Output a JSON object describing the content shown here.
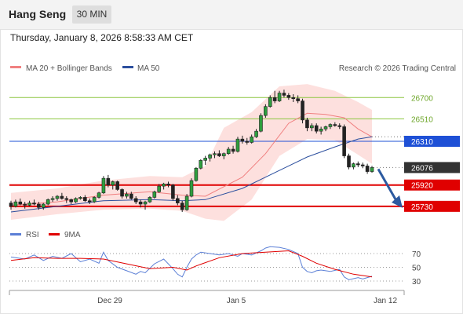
{
  "header": {
    "title": "Hang Seng",
    "timeframe": "30 MIN"
  },
  "datetime": "Thursday, January 8, 2026 8:58:33 AM CET",
  "legend": {
    "bollinger": {
      "label": "MA 20 + Bollinger Bands",
      "color": "#f08080"
    },
    "ma50": {
      "label": "MA 50",
      "color": "#2c4f9e"
    },
    "copyright": "Research © 2026 Trading Central"
  },
  "rsi_legend": {
    "rsi": {
      "label": "RSI",
      "color": "#5b7fd6"
    },
    "ma": {
      "label": "9MA",
      "color": "#e00000"
    }
  },
  "chart_data": {
    "type": "candlestick",
    "instrument": "Hang Seng",
    "timeframe": "30 MIN",
    "price_scale": [
      25540,
      26870
    ],
    "levels": [
      {
        "value": 26700,
        "label": "26700",
        "kind": "resistance",
        "color": "#8cc63f"
      },
      {
        "value": 26510,
        "label": "26510",
        "kind": "resistance",
        "color": "#8cc63f"
      },
      {
        "value": 26310,
        "label": "26310",
        "kind": "pivot",
        "color": "#1e50d6"
      },
      {
        "value": 26076,
        "label": "26076",
        "kind": "last",
        "color": "#333333"
      },
      {
        "value": 25920,
        "label": "25920",
        "kind": "support",
        "color": "#e00000"
      },
      {
        "value": 25730,
        "label": "25730",
        "kind": "support",
        "color": "#e00000"
      }
    ],
    "x_ticks": [
      "Dec 29",
      "Jan 5",
      "Jan 12"
    ],
    "candles": [
      [
        25760,
        25780,
        25700,
        25730
      ],
      [
        25730,
        25790,
        25720,
        25770
      ],
      [
        25770,
        25800,
        25740,
        25750
      ],
      [
        25750,
        25770,
        25710,
        25740
      ],
      [
        25740,
        25780,
        25730,
        25760
      ],
      [
        25760,
        25790,
        25740,
        25750
      ],
      [
        25750,
        25770,
        25700,
        25720
      ],
      [
        25720,
        25760,
        25700,
        25750
      ],
      [
        25750,
        25800,
        25740,
        25790
      ],
      [
        25790,
        25820,
        25770,
        25800
      ],
      [
        25800,
        25830,
        25780,
        25820
      ],
      [
        25820,
        25850,
        25790,
        25800
      ],
      [
        25800,
        25820,
        25760,
        25790
      ],
      [
        25790,
        25800,
        25750,
        25770
      ],
      [
        25770,
        25810,
        25760,
        25800
      ],
      [
        25800,
        25820,
        25790,
        25810
      ],
      [
        25810,
        25830,
        25770,
        25780
      ],
      [
        25780,
        25800,
        25750,
        25770
      ],
      [
        25770,
        25820,
        25760,
        25810
      ],
      [
        25810,
        25860,
        25800,
        25850
      ],
      [
        25850,
        26000,
        25840,
        25980
      ],
      [
        25980,
        26010,
        25900,
        25920
      ],
      [
        25920,
        25960,
        25880,
        25950
      ],
      [
        25950,
        25960,
        25870,
        25880
      ],
      [
        25880,
        25890,
        25800,
        25820
      ],
      [
        25820,
        25860,
        25800,
        25840
      ],
      [
        25840,
        25860,
        25790,
        25800
      ],
      [
        25800,
        25820,
        25750,
        25770
      ],
      [
        25770,
        25790,
        25720,
        25750
      ],
      [
        25750,
        25780,
        25700,
        25770
      ],
      [
        25770,
        25820,
        25760,
        25810
      ],
      [
        25810,
        25870,
        25800,
        25860
      ],
      [
        25860,
        25930,
        25850,
        25910
      ],
      [
        25910,
        25940,
        25880,
        25930
      ],
      [
        25930,
        25950,
        25900,
        25920
      ],
      [
        25920,
        25930,
        25780,
        25800
      ],
      [
        25800,
        25830,
        25740,
        25760
      ],
      [
        25760,
        25780,
        25680,
        25700
      ],
      [
        25700,
        25840,
        25690,
        25820
      ],
      [
        25820,
        25980,
        25810,
        25960
      ],
      [
        25960,
        26080,
        25950,
        26070
      ],
      [
        26070,
        26150,
        26060,
        26140
      ],
      [
        26140,
        26180,
        26100,
        26160
      ],
      [
        26160,
        26200,
        26130,
        26190
      ],
      [
        26190,
        26220,
        26160,
        26200
      ],
      [
        26200,
        26230,
        26170,
        26180
      ],
      [
        26180,
        26210,
        26150,
        26200
      ],
      [
        26200,
        26260,
        26190,
        26240
      ],
      [
        26240,
        26270,
        26200,
        26220
      ],
      [
        26220,
        26350,
        26210,
        26330
      ],
      [
        26330,
        26360,
        26290,
        26310
      ],
      [
        26310,
        26340,
        26280,
        26300
      ],
      [
        26300,
        26370,
        26290,
        26350
      ],
      [
        26350,
        26420,
        26340,
        26400
      ],
      [
        26400,
        26560,
        26390,
        26540
      ],
      [
        26540,
        26640,
        26520,
        26620
      ],
      [
        26620,
        26720,
        26610,
        26700
      ],
      [
        26700,
        26760,
        26650,
        26670
      ],
      [
        26670,
        26760,
        26660,
        26740
      ],
      [
        26740,
        26770,
        26700,
        26720
      ],
      [
        26720,
        26740,
        26680,
        26700
      ],
      [
        26700,
        26730,
        26660,
        26690
      ],
      [
        26690,
        26720,
        26650,
        26670
      ],
      [
        26670,
        26690,
        26470,
        26500
      ],
      [
        26500,
        26520,
        26400,
        26430
      ],
      [
        26430,
        26470,
        26400,
        26450
      ],
      [
        26450,
        26470,
        26380,
        26400
      ],
      [
        26400,
        26440,
        26370,
        26420
      ],
      [
        26420,
        26450,
        26400,
        26440
      ],
      [
        26440,
        26470,
        26420,
        26460
      ],
      [
        26460,
        26480,
        26440,
        26450
      ],
      [
        26450,
        26470,
        26420,
        26440
      ],
      [
        26440,
        26460,
        26160,
        26180
      ],
      [
        26180,
        26200,
        26060,
        26080
      ],
      [
        26080,
        26120,
        26060,
        26110
      ],
      [
        26110,
        26130,
        26080,
        26100
      ],
      [
        26100,
        26120,
        26070,
        26090
      ],
      [
        26090,
        26110,
        26020,
        26040
      ],
      [
        26040,
        26090,
        26030,
        26076
      ]
    ],
    "ma20": [
      [
        0,
        25740
      ],
      [
        10,
        25770
      ],
      [
        20,
        25830
      ],
      [
        30,
        25860
      ],
      [
        37,
        25830
      ],
      [
        42,
        25820
      ],
      [
        50,
        25990
      ],
      [
        55,
        26200
      ],
      [
        60,
        26470
      ],
      [
        64,
        26560
      ],
      [
        68,
        26550
      ],
      [
        72,
        26520
      ],
      [
        75,
        26420
      ],
      [
        78,
        26350
      ]
    ],
    "bb_upper": [
      [
        0,
        25850
      ],
      [
        10,
        25890
      ],
      [
        20,
        25960
      ],
      [
        30,
        26000
      ],
      [
        37,
        25990
      ],
      [
        42,
        26090
      ],
      [
        46,
        26430
      ],
      [
        52,
        26570
      ],
      [
        58,
        26800
      ],
      [
        64,
        26820
      ],
      [
        70,
        26760
      ],
      [
        75,
        26660
      ],
      [
        78,
        26590
      ]
    ],
    "bb_lower": [
      [
        0,
        25610
      ],
      [
        10,
        25660
      ],
      [
        20,
        25700
      ],
      [
        30,
        25710
      ],
      [
        37,
        25690
      ],
      [
        42,
        25620
      ],
      [
        46,
        25600
      ],
      [
        52,
        25790
      ],
      [
        58,
        26180
      ],
      [
        64,
        26330
      ],
      [
        70,
        26320
      ],
      [
        75,
        26190
      ],
      [
        78,
        26110
      ]
    ],
    "ma50": [
      [
        0,
        25680
      ],
      [
        10,
        25730
      ],
      [
        20,
        25780
      ],
      [
        30,
        25790
      ],
      [
        37,
        25780
      ],
      [
        42,
        25790
      ],
      [
        50,
        25890
      ],
      [
        58,
        26050
      ],
      [
        64,
        26170
      ],
      [
        70,
        26260
      ],
      [
        75,
        26330
      ],
      [
        78,
        26350
      ]
    ],
    "projection": {
      "from": 26076,
      "to": 25730
    },
    "rsi": {
      "levels": [
        70,
        50,
        30
      ],
      "rsi": [
        [
          0,
          65
        ],
        [
          3,
          62
        ],
        [
          5,
          68
        ],
        [
          7,
          60
        ],
        [
          9,
          66
        ],
        [
          11,
          63
        ],
        [
          13,
          70
        ],
        [
          15,
          58
        ],
        [
          17,
          62
        ],
        [
          19,
          56
        ],
        [
          20,
          72
        ],
        [
          21,
          60
        ],
        [
          23,
          50
        ],
        [
          25,
          45
        ],
        [
          27,
          40
        ],
        [
          28,
          44
        ],
        [
          29,
          42
        ],
        [
          31,
          55
        ],
        [
          33,
          62
        ],
        [
          35,
          48
        ],
        [
          36,
          40
        ],
        [
          37,
          36
        ],
        [
          38,
          50
        ],
        [
          39,
          62
        ],
        [
          40,
          68
        ],
        [
          41,
          72
        ],
        [
          43,
          70
        ],
        [
          45,
          68
        ],
        [
          47,
          70
        ],
        [
          49,
          66
        ],
        [
          50,
          70
        ],
        [
          52,
          68
        ],
        [
          54,
          74
        ],
        [
          55,
          78
        ],
        [
          56,
          80
        ],
        [
          58,
          79
        ],
        [
          60,
          76
        ],
        [
          62,
          70
        ],
        [
          63,
          50
        ],
        [
          64,
          44
        ],
        [
          65,
          42
        ],
        [
          66,
          45
        ],
        [
          67,
          46
        ],
        [
          69,
          44
        ],
        [
          71,
          47
        ],
        [
          72,
          36
        ],
        [
          73,
          32
        ],
        [
          75,
          35
        ],
        [
          76,
          33
        ],
        [
          78,
          37
        ]
      ],
      "ma": [
        [
          0,
          60
        ],
        [
          5,
          64
        ],
        [
          10,
          63
        ],
        [
          15,
          63
        ],
        [
          20,
          62
        ],
        [
          25,
          55
        ],
        [
          30,
          48
        ],
        [
          35,
          50
        ],
        [
          38,
          46
        ],
        [
          40,
          52
        ],
        [
          45,
          64
        ],
        [
          50,
          70
        ],
        [
          55,
          72
        ],
        [
          60,
          74
        ],
        [
          63,
          66
        ],
        [
          66,
          56
        ],
        [
          70,
          47
        ],
        [
          74,
          40
        ],
        [
          78,
          36
        ]
      ]
    }
  }
}
